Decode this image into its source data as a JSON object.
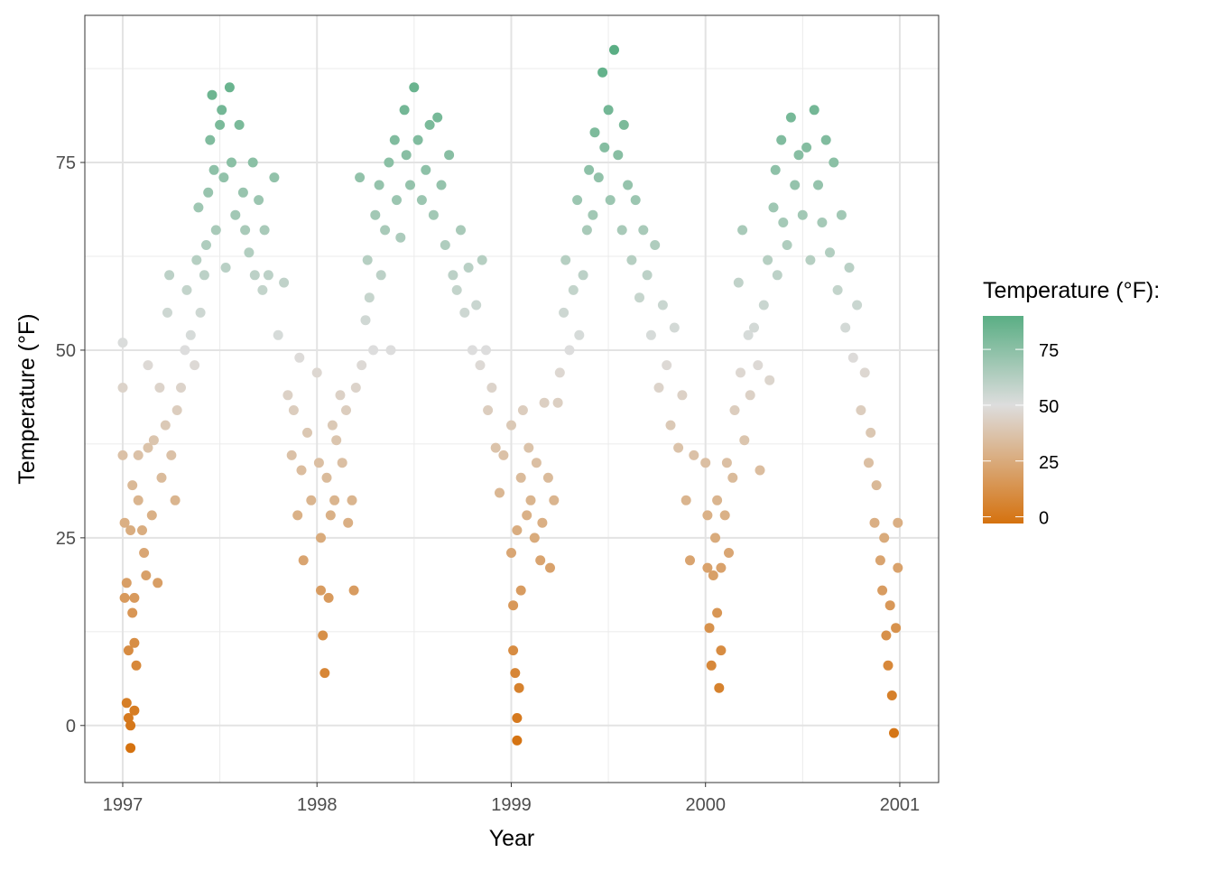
{
  "chart_data": {
    "type": "scatter",
    "title": "",
    "xlabel": "Year",
    "ylabel": "Temperature (°F)",
    "xlim": [
      1996.805,
      2001.2
    ],
    "ylim": [
      -7.6,
      94.6
    ],
    "x_ticks": [
      "1997",
      "1998",
      "1999",
      "2000",
      "2001"
    ],
    "y_ticks": [
      "0",
      "25",
      "50",
      "75"
    ],
    "grid": true,
    "legend": {
      "title": "Temperature (°F):",
      "placement": "right",
      "type": "colorbar",
      "range": [
        -3,
        90
      ],
      "ticks": [
        "0",
        "25",
        "50",
        "75"
      ],
      "colors": {
        "low": "#d5720f",
        "mid": "#dddddd",
        "high": "#5aae84",
        "midpoint": 50
      }
    },
    "points": [
      [
        1997.0,
        36
      ],
      [
        1997.0,
        45
      ],
      [
        1997.0,
        51
      ],
      [
        1997.01,
        27
      ],
      [
        1997.01,
        17
      ],
      [
        1997.02,
        19
      ],
      [
        1997.02,
        3
      ],
      [
        1997.03,
        1
      ],
      [
        1997.03,
        10
      ],
      [
        1997.04,
        0
      ],
      [
        1997.04,
        -3
      ],
      [
        1997.04,
        26
      ],
      [
        1997.05,
        15
      ],
      [
        1997.05,
        32
      ],
      [
        1997.06,
        2
      ],
      [
        1997.06,
        11
      ],
      [
        1997.06,
        17
      ],
      [
        1997.07,
        8
      ],
      [
        1997.08,
        30
      ],
      [
        1997.08,
        36
      ],
      [
        1997.1,
        26
      ],
      [
        1997.11,
        23
      ],
      [
        1997.12,
        20
      ],
      [
        1997.13,
        37
      ],
      [
        1997.13,
        48
      ],
      [
        1997.15,
        28
      ],
      [
        1997.16,
        38
      ],
      [
        1997.18,
        19
      ],
      [
        1997.19,
        45
      ],
      [
        1997.2,
        33
      ],
      [
        1997.22,
        40
      ],
      [
        1997.23,
        55
      ],
      [
        1997.24,
        60
      ],
      [
        1997.25,
        36
      ],
      [
        1997.27,
        30
      ],
      [
        1997.28,
        42
      ],
      [
        1997.3,
        45
      ],
      [
        1997.32,
        50
      ],
      [
        1997.33,
        58
      ],
      [
        1997.35,
        52
      ],
      [
        1997.37,
        48
      ],
      [
        1997.38,
        62
      ],
      [
        1997.39,
        69
      ],
      [
        1997.4,
        55
      ],
      [
        1997.42,
        60
      ],
      [
        1997.43,
        64
      ],
      [
        1997.44,
        71
      ],
      [
        1997.45,
        78
      ],
      [
        1997.46,
        84
      ],
      [
        1997.47,
        74
      ],
      [
        1997.48,
        66
      ],
      [
        1997.5,
        80
      ],
      [
        1997.51,
        82
      ],
      [
        1997.52,
        73
      ],
      [
        1997.53,
        61
      ],
      [
        1997.55,
        85
      ],
      [
        1997.56,
        75
      ],
      [
        1997.58,
        68
      ],
      [
        1997.6,
        80
      ],
      [
        1997.62,
        71
      ],
      [
        1997.63,
        66
      ],
      [
        1997.65,
        63
      ],
      [
        1997.67,
        75
      ],
      [
        1997.68,
        60
      ],
      [
        1997.7,
        70
      ],
      [
        1997.72,
        58
      ],
      [
        1997.73,
        66
      ],
      [
        1997.75,
        60
      ],
      [
        1997.78,
        73
      ],
      [
        1997.8,
        52
      ],
      [
        1997.83,
        59
      ],
      [
        1997.85,
        44
      ],
      [
        1997.87,
        36
      ],
      [
        1997.88,
        42
      ],
      [
        1997.9,
        28
      ],
      [
        1997.91,
        49
      ],
      [
        1997.92,
        34
      ],
      [
        1997.93,
        22
      ],
      [
        1997.95,
        39
      ],
      [
        1997.97,
        30
      ],
      [
        1998.0,
        47
      ],
      [
        1998.01,
        35
      ],
      [
        1998.02,
        25
      ],
      [
        1998.02,
        18
      ],
      [
        1998.03,
        12
      ],
      [
        1998.04,
        7
      ],
      [
        1998.05,
        33
      ],
      [
        1998.06,
        17
      ],
      [
        1998.07,
        28
      ],
      [
        1998.08,
        40
      ],
      [
        1998.09,
        30
      ],
      [
        1998.1,
        38
      ],
      [
        1998.12,
        44
      ],
      [
        1998.13,
        35
      ],
      [
        1998.15,
        42
      ],
      [
        1998.16,
        27
      ],
      [
        1998.18,
        30
      ],
      [
        1998.19,
        18
      ],
      [
        1998.2,
        45
      ],
      [
        1998.22,
        73
      ],
      [
        1998.23,
        48
      ],
      [
        1998.25,
        54
      ],
      [
        1998.26,
        62
      ],
      [
        1998.27,
        57
      ],
      [
        1998.29,
        50
      ],
      [
        1998.3,
        68
      ],
      [
        1998.32,
        72
      ],
      [
        1998.33,
        60
      ],
      [
        1998.35,
        66
      ],
      [
        1998.37,
        75
      ],
      [
        1998.38,
        50
      ],
      [
        1998.4,
        78
      ],
      [
        1998.41,
        70
      ],
      [
        1998.43,
        65
      ],
      [
        1998.45,
        82
      ],
      [
        1998.46,
        76
      ],
      [
        1998.48,
        72
      ],
      [
        1998.5,
        85
      ],
      [
        1998.52,
        78
      ],
      [
        1998.54,
        70
      ],
      [
        1998.56,
        74
      ],
      [
        1998.58,
        80
      ],
      [
        1998.6,
        68
      ],
      [
        1998.62,
        81
      ],
      [
        1998.64,
        72
      ],
      [
        1998.66,
        64
      ],
      [
        1998.68,
        76
      ],
      [
        1998.7,
        60
      ],
      [
        1998.72,
        58
      ],
      [
        1998.74,
        66
      ],
      [
        1998.76,
        55
      ],
      [
        1998.78,
        61
      ],
      [
        1998.8,
        50
      ],
      [
        1998.82,
        56
      ],
      [
        1998.84,
        48
      ],
      [
        1998.85,
        62
      ],
      [
        1998.87,
        50
      ],
      [
        1998.88,
        42
      ],
      [
        1998.9,
        45
      ],
      [
        1998.92,
        37
      ],
      [
        1998.94,
        31
      ],
      [
        1998.96,
        36
      ],
      [
        1999.0,
        23
      ],
      [
        1999.0,
        40
      ],
      [
        1999.01,
        16
      ],
      [
        1999.01,
        10
      ],
      [
        1999.02,
        7
      ],
      [
        1999.03,
        1
      ],
      [
        1999.03,
        -2
      ],
      [
        1999.03,
        26
      ],
      [
        1999.04,
        5
      ],
      [
        1999.05,
        18
      ],
      [
        1999.05,
        33
      ],
      [
        1999.06,
        42
      ],
      [
        1999.08,
        28
      ],
      [
        1999.09,
        37
      ],
      [
        1999.1,
        30
      ],
      [
        1999.12,
        25
      ],
      [
        1999.13,
        35
      ],
      [
        1999.15,
        22
      ],
      [
        1999.16,
        27
      ],
      [
        1999.17,
        43
      ],
      [
        1999.19,
        33
      ],
      [
        1999.2,
        21
      ],
      [
        1999.22,
        30
      ],
      [
        1999.24,
        43
      ],
      [
        1999.25,
        47
      ],
      [
        1999.27,
        55
      ],
      [
        1999.28,
        62
      ],
      [
        1999.3,
        50
      ],
      [
        1999.32,
        58
      ],
      [
        1999.34,
        70
      ],
      [
        1999.35,
        52
      ],
      [
        1999.37,
        60
      ],
      [
        1999.39,
        66
      ],
      [
        1999.4,
        74
      ],
      [
        1999.42,
        68
      ],
      [
        1999.43,
        79
      ],
      [
        1999.45,
        73
      ],
      [
        1999.47,
        87
      ],
      [
        1999.48,
        77
      ],
      [
        1999.5,
        82
      ],
      [
        1999.51,
        70
      ],
      [
        1999.53,
        90
      ],
      [
        1999.55,
        76
      ],
      [
        1999.57,
        66
      ],
      [
        1999.58,
        80
      ],
      [
        1999.6,
        72
      ],
      [
        1999.62,
        62
      ],
      [
        1999.64,
        70
      ],
      [
        1999.66,
        57
      ],
      [
        1999.68,
        66
      ],
      [
        1999.7,
        60
      ],
      [
        1999.72,
        52
      ],
      [
        1999.74,
        64
      ],
      [
        1999.76,
        45
      ],
      [
        1999.78,
        56
      ],
      [
        1999.8,
        48
      ],
      [
        1999.82,
        40
      ],
      [
        1999.84,
        53
      ],
      [
        1999.86,
        37
      ],
      [
        1999.88,
        44
      ],
      [
        1999.9,
        30
      ],
      [
        1999.92,
        22
      ],
      [
        1999.94,
        36
      ],
      [
        2000.0,
        35
      ],
      [
        2000.01,
        21
      ],
      [
        2000.01,
        28
      ],
      [
        2000.02,
        13
      ],
      [
        2000.03,
        8
      ],
      [
        2000.04,
        20
      ],
      [
        2000.05,
        25
      ],
      [
        2000.06,
        30
      ],
      [
        2000.06,
        15
      ],
      [
        2000.07,
        5
      ],
      [
        2000.08,
        21
      ],
      [
        2000.08,
        10
      ],
      [
        2000.1,
        28
      ],
      [
        2000.11,
        35
      ],
      [
        2000.12,
        23
      ],
      [
        2000.14,
        33
      ],
      [
        2000.15,
        42
      ],
      [
        2000.17,
        59
      ],
      [
        2000.18,
        47
      ],
      [
        2000.19,
        66
      ],
      [
        2000.2,
        38
      ],
      [
        2000.22,
        52
      ],
      [
        2000.23,
        44
      ],
      [
        2000.25,
        53
      ],
      [
        2000.27,
        48
      ],
      [
        2000.28,
        34
      ],
      [
        2000.3,
        56
      ],
      [
        2000.32,
        62
      ],
      [
        2000.33,
        46
      ],
      [
        2000.35,
        69
      ],
      [
        2000.36,
        74
      ],
      [
        2000.37,
        60
      ],
      [
        2000.39,
        78
      ],
      [
        2000.4,
        67
      ],
      [
        2000.42,
        64
      ],
      [
        2000.44,
        81
      ],
      [
        2000.46,
        72
      ],
      [
        2000.48,
        76
      ],
      [
        2000.5,
        68
      ],
      [
        2000.52,
        77
      ],
      [
        2000.54,
        62
      ],
      [
        2000.56,
        82
      ],
      [
        2000.58,
        72
      ],
      [
        2000.6,
        67
      ],
      [
        2000.62,
        78
      ],
      [
        2000.64,
        63
      ],
      [
        2000.66,
        75
      ],
      [
        2000.68,
        58
      ],
      [
        2000.7,
        68
      ],
      [
        2000.72,
        53
      ],
      [
        2000.74,
        61
      ],
      [
        2000.76,
        49
      ],
      [
        2000.78,
        56
      ],
      [
        2000.8,
        42
      ],
      [
        2000.82,
        47
      ],
      [
        2000.84,
        35
      ],
      [
        2000.85,
        39
      ],
      [
        2000.87,
        27
      ],
      [
        2000.88,
        32
      ],
      [
        2000.9,
        22
      ],
      [
        2000.91,
        18
      ],
      [
        2000.92,
        25
      ],
      [
        2000.93,
        12
      ],
      [
        2000.94,
        8
      ],
      [
        2000.95,
        16
      ],
      [
        2000.96,
        4
      ],
      [
        2000.97,
        -1
      ],
      [
        2000.98,
        13
      ],
      [
        2000.99,
        27
      ],
      [
        2000.99,
        21
      ]
    ]
  }
}
